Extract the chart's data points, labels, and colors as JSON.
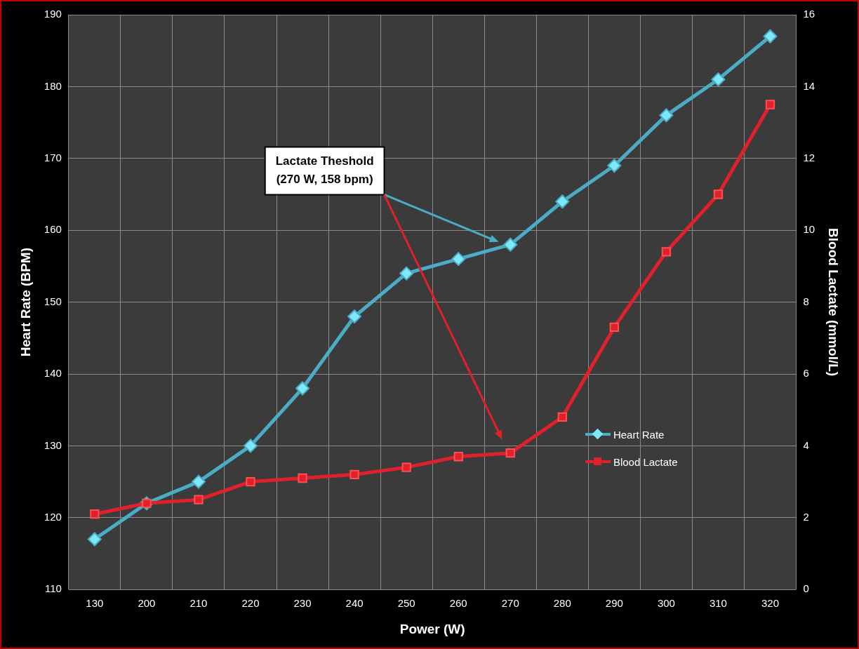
{
  "chart_data": {
    "type": "line",
    "xlabel": "Power (W)",
    "ylabel": "Heart Rate (BPM)",
    "y2label": "Blood Lactate (mmol/L)",
    "categories": [
      "130",
      "200",
      "210",
      "220",
      "230",
      "240",
      "250",
      "260",
      "270",
      "280",
      "290",
      "300",
      "310",
      "320"
    ],
    "series": [
      {
        "name": "Heart Rate",
        "color": "#4bacc6",
        "marker": "diamond",
        "values": [
          117,
          122,
          125,
          130,
          138,
          148,
          154,
          156,
          158,
          164,
          169,
          176,
          181,
          187
        ]
      },
      {
        "name": "Blood Lactate",
        "color": "#e0202a",
        "marker": "square",
        "axis": "y2",
        "values": [
          2.1,
          2.4,
          2.5,
          3.0,
          3.1,
          3.2,
          3.4,
          3.7,
          3.8,
          4.8,
          7.3,
          9.4,
          11.0,
          13.5
        ]
      }
    ],
    "ylim": [
      110,
      190
    ],
    "yticks": [
      110,
      120,
      130,
      140,
      150,
      160,
      170,
      180,
      190
    ],
    "y2lim": [
      0,
      16
    ],
    "y2ticks": [
      0,
      2,
      4,
      6,
      8,
      10,
      12,
      14,
      16
    ],
    "grid": true,
    "legend": "bottom right",
    "annotations": [
      "Lactate Theshold\n(270 W, 158 bpm)"
    ]
  }
}
